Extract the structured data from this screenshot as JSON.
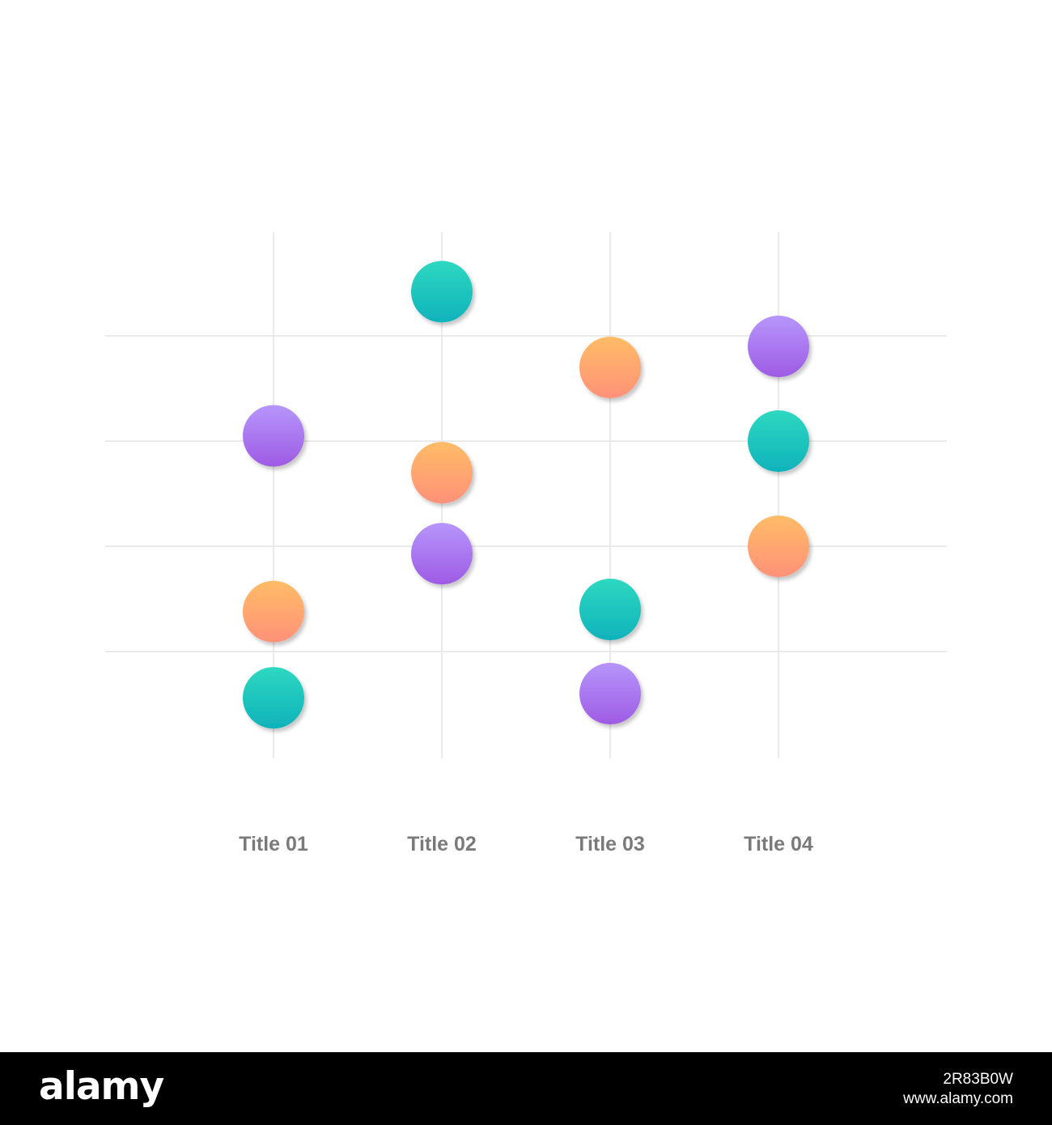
{
  "chart_data": {
    "type": "scatter",
    "categories": [
      "Title 01",
      "Title 02",
      "Title 03",
      "Title 04"
    ],
    "ylim": [
      0,
      5
    ],
    "grid": true,
    "series": [
      {
        "color_top": "#b695fb",
        "color_bottom": "#9e5be4",
        "values": [
          3.05,
          1.93,
          0.6,
          3.9
        ]
      },
      {
        "color_top": "#ffbc67",
        "color_bottom": "#ff9178",
        "values": [
          1.38,
          2.7,
          3.7,
          2.0
        ]
      },
      {
        "color_top": "#2ed8c0",
        "color_bottom": "#0fb2bb",
        "values": [
          0.56,
          4.42,
          1.4,
          3.0
        ]
      }
    ]
  },
  "colors": {
    "grid": "#e4e4e4",
    "label": "#7a7a7a",
    "footer_background": "#000000"
  },
  "watermark": {
    "logo": "alamy",
    "line1": "2R83B0W",
    "line2": "www.alamy.com"
  }
}
